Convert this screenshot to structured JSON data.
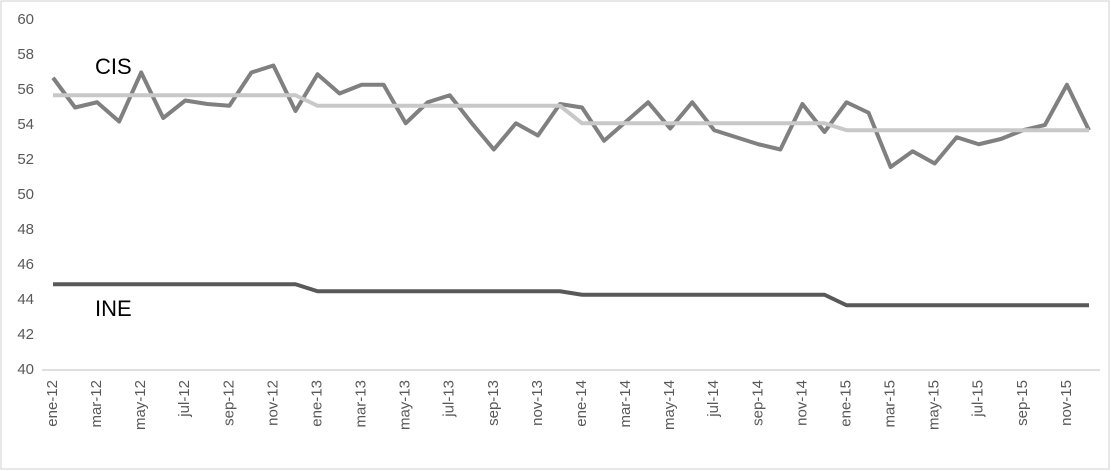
{
  "chart_data": {
    "type": "line",
    "categories": [
      "ene-12",
      null,
      "mar-12",
      null,
      "may-12",
      null,
      "jul-12",
      null,
      "sep-12",
      null,
      "nov-12",
      null,
      "ene-13",
      null,
      "mar-13",
      null,
      "may-13",
      null,
      "jul-13",
      null,
      "sep-13",
      null,
      "nov-13",
      null,
      "ene-14",
      null,
      "mar-14",
      null,
      "may-14",
      null,
      "jul-14",
      null,
      "sep-14",
      null,
      "nov-14",
      null,
      "ene-15",
      null,
      "mar-15",
      null,
      "may-15",
      null,
      "jul-15",
      null,
      "sep-15",
      null,
      "nov-15",
      null
    ],
    "series": [
      {
        "name": "CIS",
        "color": "#808080",
        "values": [
          56.7,
          55.0,
          55.3,
          54.2,
          57.0,
          54.4,
          55.4,
          55.2,
          55.1,
          57.0,
          57.4,
          54.8,
          56.9,
          55.8,
          56.3,
          56.3,
          54.1,
          55.3,
          55.7,
          54.1,
          52.6,
          54.1,
          53.4,
          55.2,
          55.0,
          53.1,
          54.2,
          55.3,
          53.8,
          55.3,
          53.7,
          53.3,
          52.9,
          52.6,
          55.2,
          53.6,
          55.3,
          54.7,
          51.6,
          52.5,
          51.8,
          53.3,
          52.9,
          53.2,
          53.7,
          54.0,
          56.3,
          53.7
        ]
      },
      {
        "color": "#c8c8c8",
        "values": [
          55.7,
          55.7,
          55.7,
          55.7,
          55.7,
          55.7,
          55.7,
          55.7,
          55.7,
          55.7,
          55.7,
          55.7,
          55.1,
          55.1,
          55.1,
          55.1,
          55.1,
          55.1,
          55.1,
          55.1,
          55.1,
          55.1,
          55.1,
          55.1,
          54.1,
          54.1,
          54.1,
          54.1,
          54.1,
          54.1,
          54.1,
          54.1,
          54.1,
          54.1,
          54.1,
          54.1,
          53.7,
          53.7,
          53.7,
          53.7,
          53.7,
          53.7,
          53.7,
          53.7,
          53.7,
          53.7,
          53.7,
          53.7
        ]
      },
      {
        "name": "INE",
        "color": "#595959",
        "values": [
          44.9,
          44.9,
          44.9,
          44.9,
          44.9,
          44.9,
          44.9,
          44.9,
          44.9,
          44.9,
          44.9,
          44.9,
          44.5,
          44.5,
          44.5,
          44.5,
          44.5,
          44.5,
          44.5,
          44.5,
          44.5,
          44.5,
          44.5,
          44.5,
          44.3,
          44.3,
          44.3,
          44.3,
          44.3,
          44.3,
          44.3,
          44.3,
          44.3,
          44.3,
          44.3,
          44.3,
          43.7,
          43.7,
          43.7,
          43.7,
          43.7,
          43.7,
          43.7,
          43.7,
          43.7,
          43.7,
          43.7,
          43.7
        ]
      }
    ],
    "ylim": [
      40,
      60
    ],
    "yticks": [
      40,
      42,
      44,
      46,
      48,
      50,
      52,
      54,
      56,
      58,
      60
    ],
    "grid": false
  }
}
